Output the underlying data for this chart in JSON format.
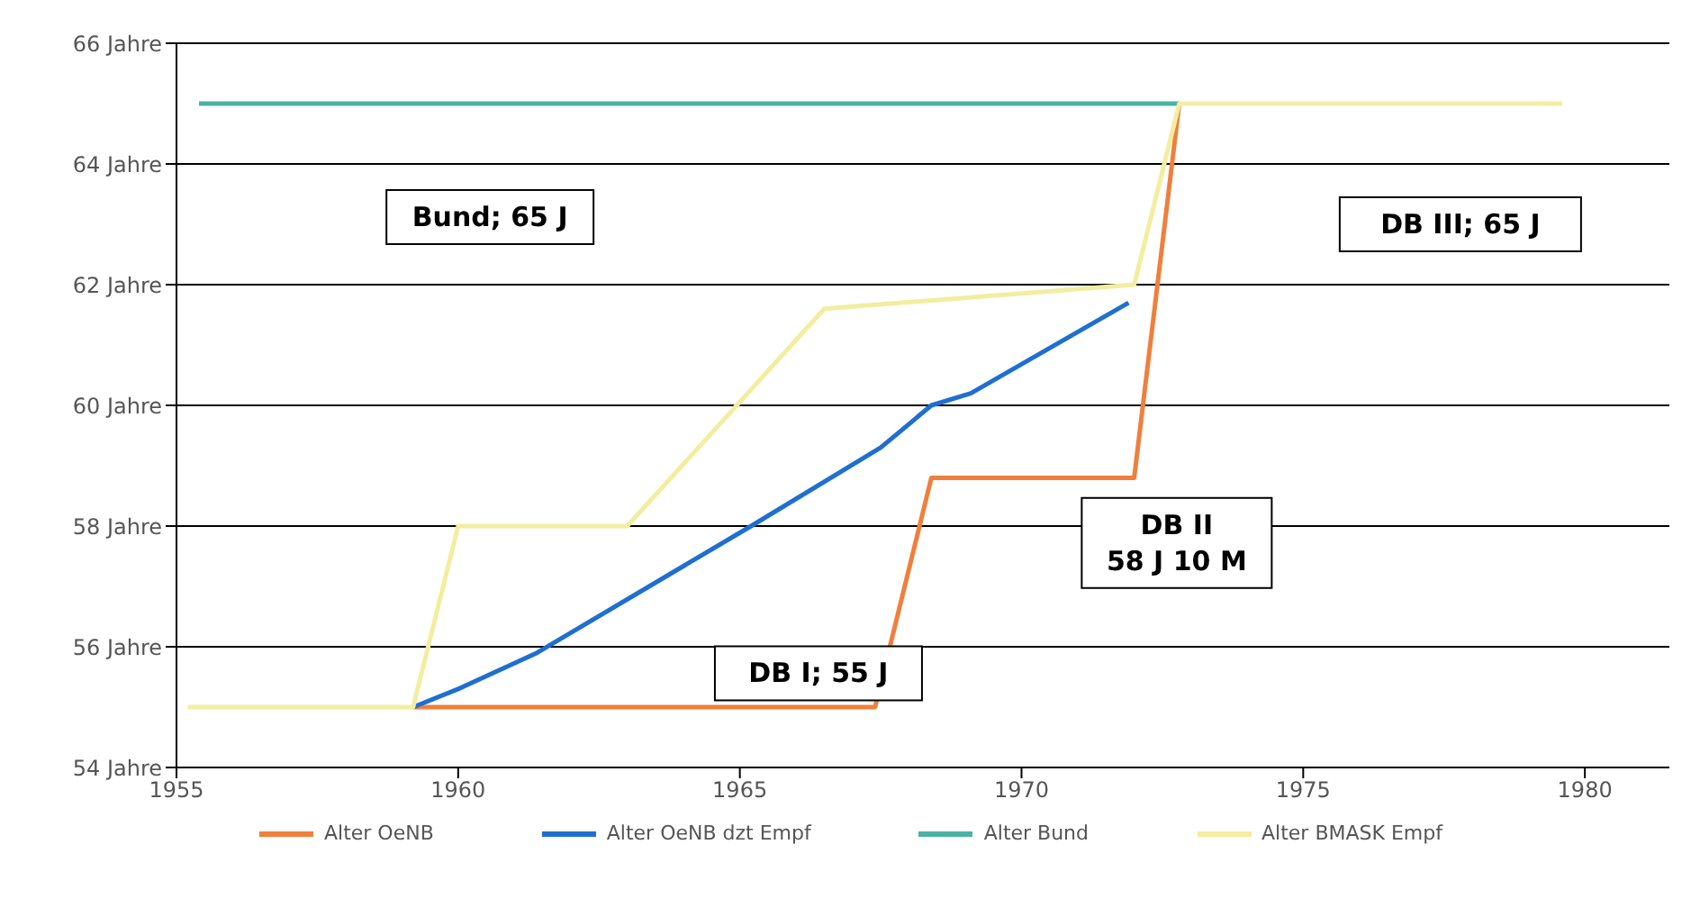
{
  "chart_data": {
    "type": "line",
    "xlim": [
      1955,
      1981.5
    ],
    "xticks": [
      1955,
      1960,
      1965,
      1970,
      1975,
      1980
    ],
    "ylim": [
      54,
      66
    ],
    "yticks": [
      {
        "value": 54,
        "label": "54 Jahre"
      },
      {
        "value": 56,
        "label": "56 Jahre"
      },
      {
        "value": 58,
        "label": "58 Jahre"
      },
      {
        "value": 60,
        "label": "60 Jahre"
      },
      {
        "value": 62,
        "label": "62 Jahre"
      },
      {
        "value": 64,
        "label": "64 Jahre"
      },
      {
        "value": 66,
        "label": "66 Jahre"
      }
    ],
    "grid": "y",
    "legend": "bottom",
    "marker": "none",
    "line_style": "solid",
    "series": [
      {
        "name": "Alter OeNB",
        "color": "#f07f3c",
        "x": [
          1959.2,
          1967.4,
          1968.4,
          1972,
          1972.8
        ],
        "values": [
          55,
          55,
          58.8,
          58.8,
          65
        ]
      },
      {
        "name": "Alter OeNB dzt Empf",
        "color": "#1f6fd0",
        "x": [
          1959.2,
          1960,
          1961.4,
          1965.2,
          1967.5,
          1968.4,
          1969.1,
          1971.9
        ],
        "values": [
          55,
          55.3,
          55.9,
          58,
          59.3,
          60,
          60.2,
          61.7
        ]
      },
      {
        "name": "Alter Bund",
        "color": "#4bb3a3",
        "x": [
          1955.4,
          1972.8
        ],
        "values": [
          65,
          65
        ]
      },
      {
        "name": "Alter BMASK Empf",
        "color": "#f3eda0",
        "x": [
          1955.2,
          1959.2,
          1960,
          1963,
          1966.5,
          1972,
          1972.8,
          1979.6
        ],
        "values": [
          55,
          55,
          58,
          58,
          61.6,
          62,
          65,
          65
        ]
      }
    ],
    "annotations": [
      "Bund; 65 J",
      "DB I; 55 J",
      "DB II\n58 J 10 M",
      "DB III; 65 J"
    ]
  }
}
